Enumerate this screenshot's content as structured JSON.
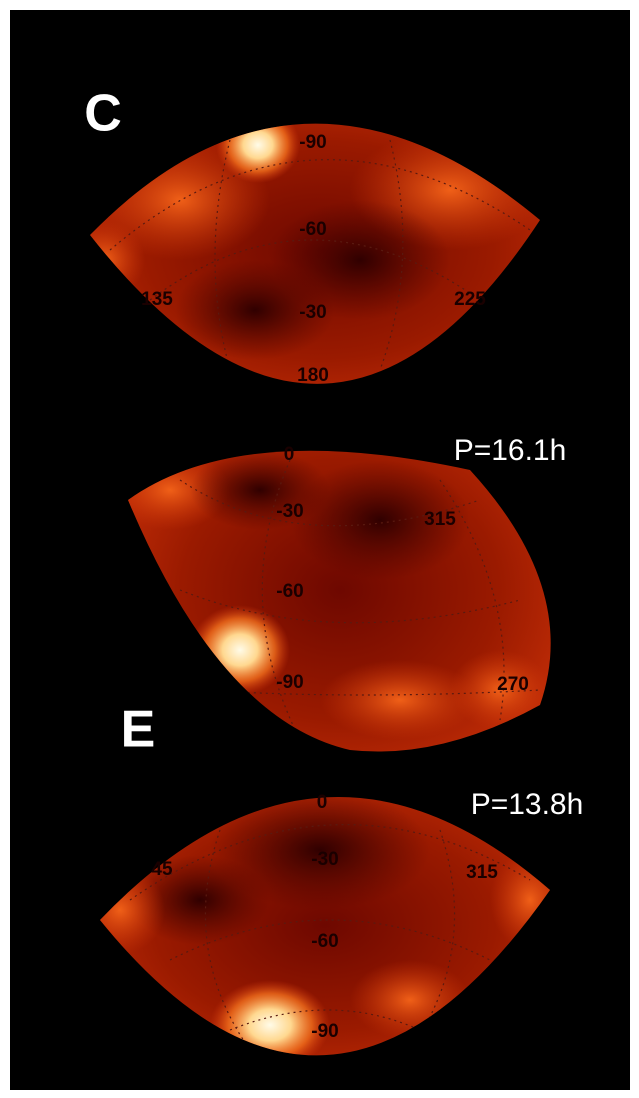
{
  "panels": [
    {
      "label": "C",
      "grid_labels": [
        "-90",
        "-60",
        "-30",
        "180",
        "135",
        "225"
      ]
    },
    {
      "period": "P=16.1h",
      "grid_labels": [
        "0",
        "-30",
        "315",
        "-60",
        "-90",
        "270"
      ]
    },
    {
      "label": "E",
      "period": "P=13.8h",
      "grid_labels": [
        "0",
        "-30",
        "45",
        "315",
        "-60",
        "-90"
      ]
    }
  ]
}
